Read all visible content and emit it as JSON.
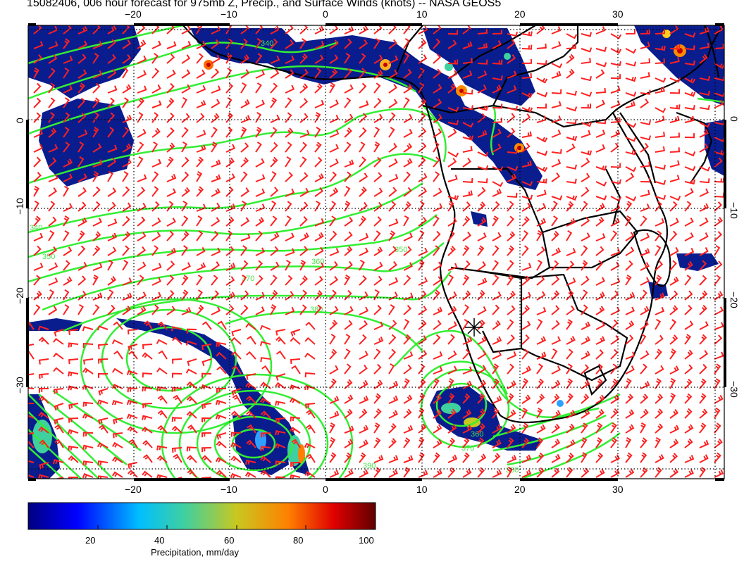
{
  "title": "15082406, 006 hour forecast for 975mb Z, Precip., and Surface Winds (knots) -- NASA GEOS5",
  "map": {
    "lon_range": [
      -31,
      41
    ],
    "lat_range": [
      -40,
      10
    ],
    "lon_ticks": [
      "−20",
      "−10",
      "0",
      "10",
      "20",
      "30"
    ],
    "lat_ticks": [
      "0",
      "−10",
      "−20",
      "−30"
    ],
    "contour_labels": [
      "340",
      "350",
      "360",
      "370",
      "380",
      "380",
      "390",
      "360",
      "370",
      "350",
      "340"
    ],
    "colors": {
      "contour": "#33ee33",
      "wind_barb": "#ff2020",
      "coastline": "#000000",
      "precip_base": "#0a1d8f",
      "grid": "#000000"
    }
  },
  "colorbar": {
    "label": "Precipitation, mm/day",
    "ticks": [
      "20",
      "40",
      "60",
      "80",
      "100"
    ],
    "range": [
      0,
      100
    ],
    "stops": [
      "#000080",
      "#0000ff",
      "#00bfff",
      "#3fd0a0",
      "#c8c820",
      "#ff8000",
      "#e00000",
      "#600000"
    ]
  }
}
